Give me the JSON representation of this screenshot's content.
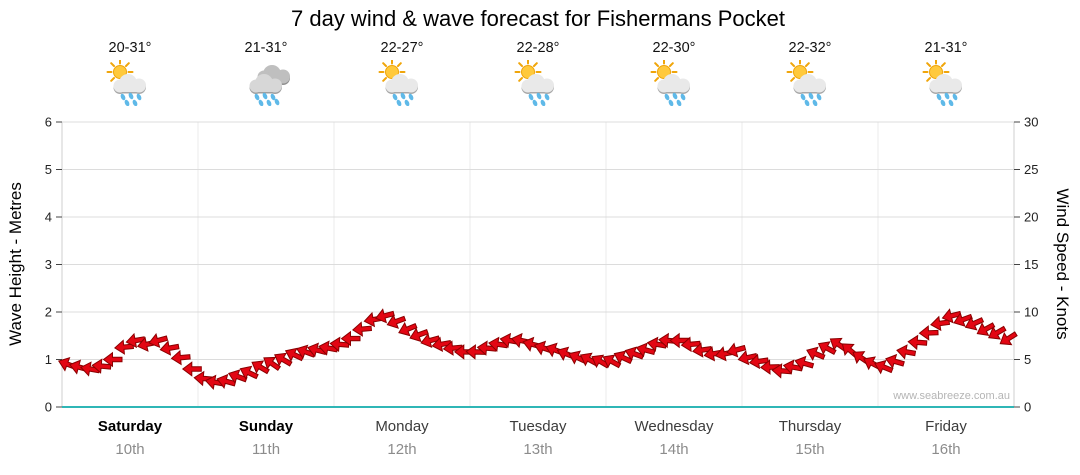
{
  "watermark": "www.seabreeze.com.au",
  "colors": {
    "arrow_fill": "#E30613",
    "arrow_stroke": "#8A0000",
    "axis_line": "#2FB6B6",
    "grid": "#DCDCDC",
    "day_separator": "#EBEBEB",
    "plot_border": "#CFCFCF",
    "tick": "#444444",
    "tick_label": "#222222",
    "weekend_label": "#000000",
    "weekday_label": "#3C3C3C",
    "date_label": "#8C8C8C",
    "watermark": "#B5B5B5"
  },
  "days": [
    {
      "name": "Saturday",
      "date": "10th",
      "temp": "20-31°",
      "icon": "sun-cloud-rain",
      "bold": true
    },
    {
      "name": "Sunday",
      "date": "11th",
      "temp": "21-31°",
      "icon": "clouds-rain",
      "bold": true
    },
    {
      "name": "Monday",
      "date": "12th",
      "temp": "22-27°",
      "icon": "sun-cloud-rain",
      "bold": false
    },
    {
      "name": "Tuesday",
      "date": "13th",
      "temp": "22-28°",
      "icon": "sun-cloud-rain",
      "bold": false
    },
    {
      "name": "Wednesday",
      "date": "14th",
      "temp": "22-30°",
      "icon": "sun-cloud-rain",
      "bold": false
    },
    {
      "name": "Thursday",
      "date": "15th",
      "temp": "22-32°",
      "icon": "sun-cloud-rain",
      "bold": false
    },
    {
      "name": "Friday",
      "date": "16th",
      "temp": "21-31°",
      "icon": "sun-cloud-rain",
      "bold": false
    }
  ],
  "chart_data": {
    "type": "wind-arrow-series",
    "title": "7 day wind & wave forecast for Fishermans Pocket",
    "x_categories_days": [
      "Saturday 10th",
      "Sunday 11th",
      "Monday 12th",
      "Tuesday 13th",
      "Wednesday 14th",
      "Thursday 15th",
      "Friday 16th"
    ],
    "samples_per_day": 12,
    "x_sample_interval": "2 hours",
    "y_left": {
      "label": "Wave Height - Metres",
      "ticks": [
        0,
        1,
        2,
        3,
        4,
        5,
        6
      ],
      "max": 6
    },
    "y_right": {
      "label": "Wind Speed - Knots",
      "ticks": [
        0,
        5,
        10,
        15,
        20,
        25,
        30
      ],
      "max": 30
    },
    "grid": "horizontal-light",
    "series": {
      "wind_speed_knots": [
        4.5,
        4.2,
        4.0,
        4.3,
        5.0,
        6.3,
        7.0,
        6.6,
        7.0,
        6.2,
        5.2,
        4.0,
        3.0,
        2.6,
        2.7,
        3.2,
        3.6,
        4.2,
        4.6,
        5.0,
        5.5,
        5.8,
        6.0,
        6.2,
        6.6,
        7.2,
        8.2,
        9.2,
        9.6,
        9.0,
        8.2,
        7.6,
        7.0,
        6.6,
        6.2,
        5.8,
        5.8,
        6.2,
        6.6,
        7.0,
        7.0,
        6.6,
        6.2,
        6.0,
        5.6,
        5.2,
        5.0,
        4.8,
        4.8,
        5.2,
        5.6,
        6.0,
        6.6,
        7.0,
        7.0,
        6.6,
        6.0,
        5.6,
        5.6,
        6.0,
        5.2,
        4.8,
        4.2,
        3.8,
        4.2,
        4.6,
        5.6,
        6.2,
        6.6,
        6.0,
        5.2,
        4.6,
        4.2,
        4.8,
        5.8,
        6.8,
        7.8,
        8.8,
        9.6,
        9.2,
        8.8,
        8.2,
        7.8,
        7.2
      ],
      "wind_direction_deg": [
        200,
        195,
        190,
        185,
        180,
        175,
        170,
        168,
        165,
        170,
        175,
        180,
        185,
        190,
        195,
        200,
        205,
        210,
        215,
        210,
        205,
        200,
        195,
        190,
        185,
        180,
        175,
        170,
        165,
        160,
        158,
        160,
        165,
        170,
        175,
        180,
        182,
        185,
        188,
        190,
        192,
        195,
        198,
        200,
        202,
        205,
        208,
        210,
        208,
        205,
        200,
        195,
        190,
        185,
        180,
        175,
        172,
        170,
        168,
        165,
        168,
        172,
        178,
        184,
        190,
        196,
        202,
        208,
        214,
        220,
        214,
        208,
        202,
        196,
        190,
        184,
        178,
        172,
        166,
        160,
        156,
        152,
        150,
        148
      ]
    }
  }
}
